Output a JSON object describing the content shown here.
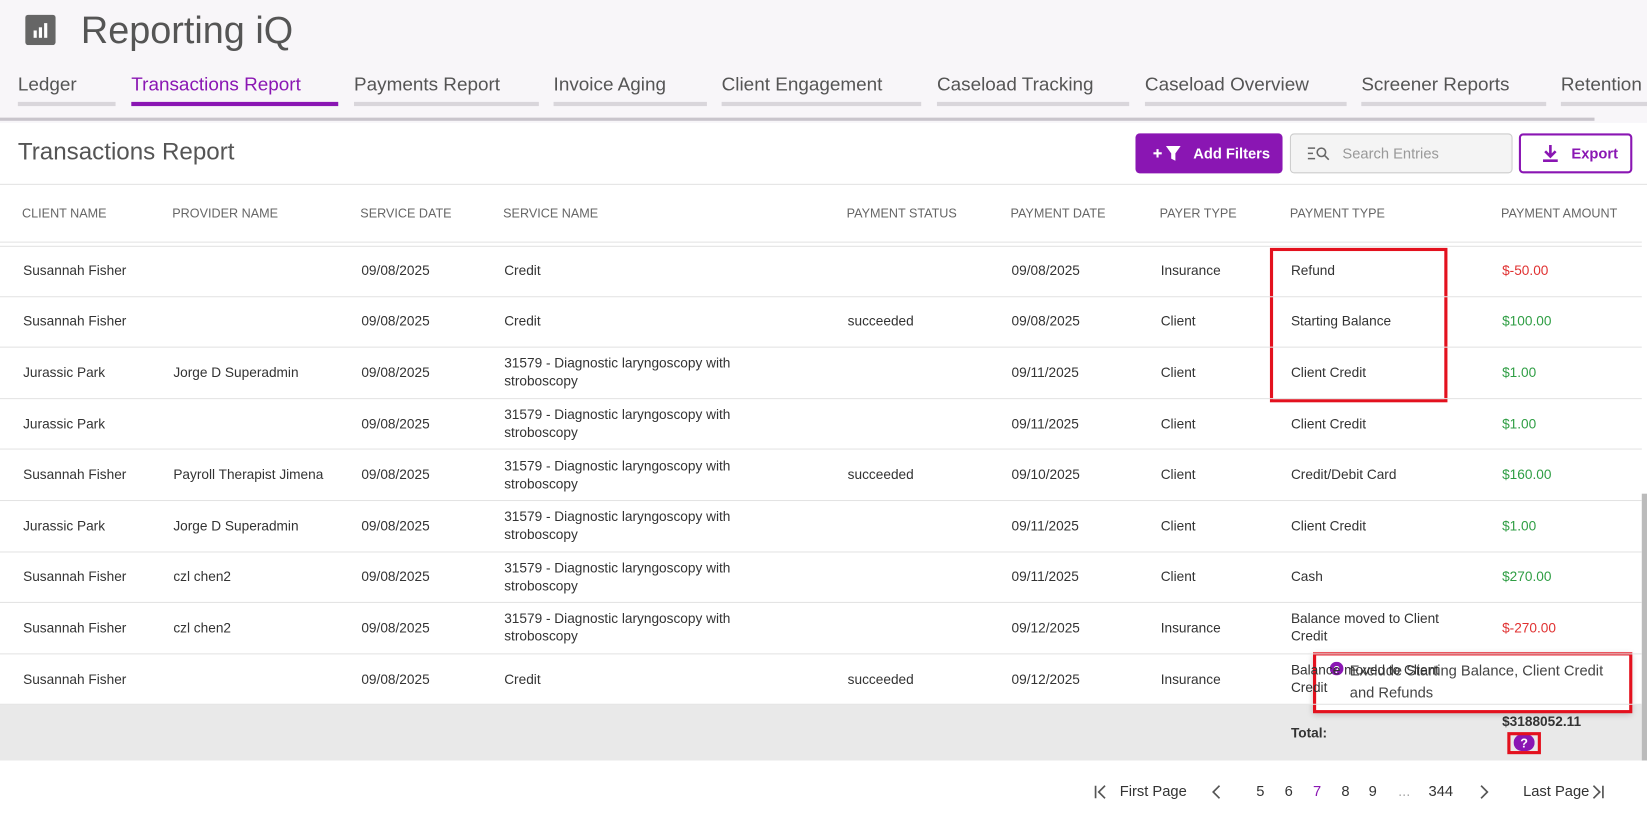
{
  "header": {
    "title": "Reporting iQ"
  },
  "tabs": [
    {
      "label": "Ledger",
      "active": false
    },
    {
      "label": "Transactions Report",
      "active": true
    },
    {
      "label": "Payments Report",
      "active": false
    },
    {
      "label": "Invoice Aging",
      "active": false
    },
    {
      "label": "Client Engagement",
      "active": false
    },
    {
      "label": "Caseload Tracking",
      "active": false
    },
    {
      "label": "Caseload Overview",
      "active": false
    },
    {
      "label": "Screener Reports",
      "active": false
    },
    {
      "label": "Retention",
      "active": false
    }
  ],
  "report": {
    "title": "Transactions Report",
    "add_filters": "Add Filters",
    "search_placeholder": "Search Entries",
    "export": "Export"
  },
  "table": {
    "columns": [
      "CLIENT NAME",
      "PROVIDER NAME",
      "SERVICE DATE",
      "SERVICE NAME",
      "PAYMENT STATUS",
      "PAYMENT DATE",
      "PAYER TYPE",
      "PAYMENT TYPE",
      "PAYMENT AMOUNT"
    ],
    "rows": [
      [
        "Susannah Fisher",
        null,
        "09/08/2025",
        "Credit",
        null,
        "09/08/2025",
        "Insurance",
        "Refund",
        "$-50.00"
      ],
      [
        "Susannah Fisher",
        null,
        "09/08/2025",
        "Credit",
        "succeeded",
        "09/08/2025",
        "Client",
        "Starting Balance",
        "$100.00"
      ],
      [
        "Jurassic Park",
        "Jorge D Superadmin",
        "09/08/2025",
        "31579 - Diagnostic laryngoscopy with stroboscopy",
        null,
        "09/11/2025",
        "Client",
        "Client Credit",
        "$1.00"
      ],
      [
        "Jurassic Park",
        null,
        "09/08/2025",
        "31579 - Diagnostic laryngoscopy with stroboscopy",
        null,
        "09/11/2025",
        "Client",
        "Client Credit",
        "$1.00"
      ],
      [
        "Susannah Fisher",
        "Payroll Therapist Jimena",
        "09/08/2025",
        "31579 - Diagnostic laryngoscopy with stroboscopy",
        "succeeded",
        "09/10/2025",
        "Client",
        "Credit/Debit Card",
        "$160.00"
      ],
      [
        "Jurassic Park",
        "Jorge D Superadmin",
        "09/08/2025",
        "31579 - Diagnostic laryngoscopy with stroboscopy",
        null,
        "09/11/2025",
        "Client",
        "Client Credit",
        "$1.00"
      ],
      [
        "Susannah Fisher",
        "czl chen2",
        "09/08/2025",
        "31579 - Diagnostic laryngoscopy with stroboscopy",
        null,
        "09/11/2025",
        "Client",
        "Cash",
        "$270.00"
      ],
      [
        "Susannah Fisher",
        "czl chen2",
        "09/08/2025",
        "31579 - Diagnostic laryngoscopy with stroboscopy",
        null,
        "09/12/2025",
        "Insurance",
        "Balance moved to Client Credit",
        "$-270.00"
      ],
      [
        "Susannah Fisher",
        null,
        "09/08/2025",
        "Credit",
        "succeeded",
        "09/12/2025",
        "Insurance",
        "Balance moved to Client Credit",
        null
      ]
    ],
    "total_label": "Total:",
    "total_value": "$3188052.11"
  },
  "tooltip": "Exclude Starting Balance, Client Credit and Refunds",
  "pagination": {
    "first": "First Page",
    "last": "Last Page",
    "pages": [
      {
        "label": "5",
        "current": false
      },
      {
        "label": "6",
        "current": false
      },
      {
        "label": "7",
        "current": true
      },
      {
        "label": "8",
        "current": false
      },
      {
        "label": "9",
        "current": false
      },
      {
        "label": "...",
        "current": false
      },
      {
        "label": "344",
        "current": false
      }
    ]
  }
}
